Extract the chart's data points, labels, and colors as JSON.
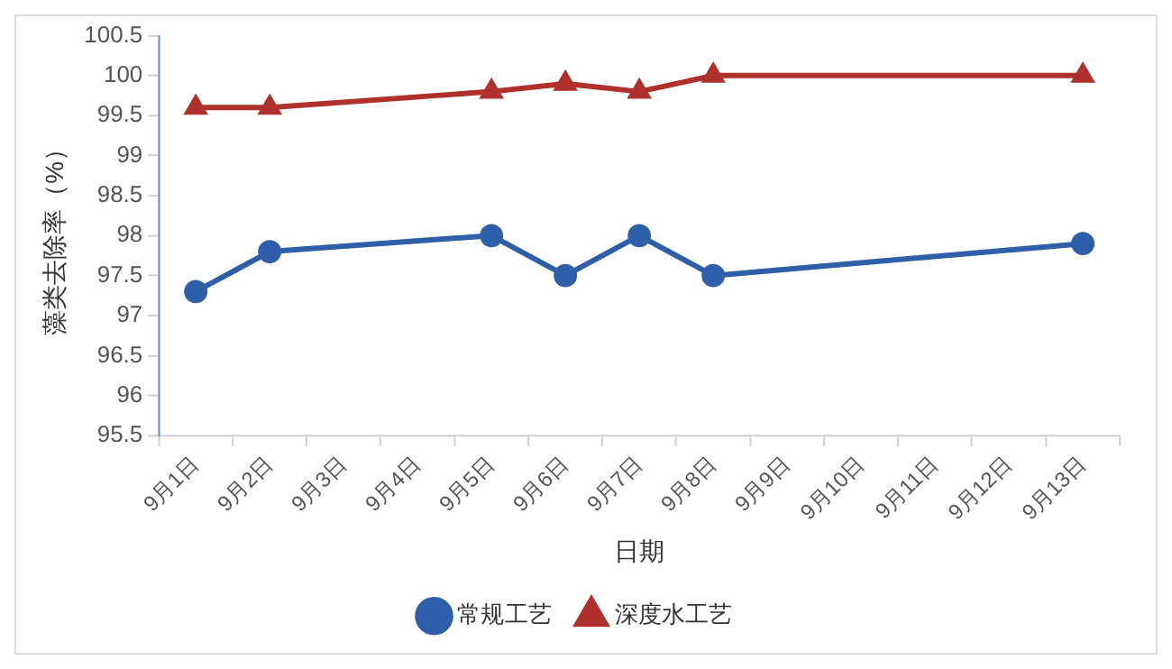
{
  "chart_data": {
    "type": "line",
    "xlabel": "日期",
    "ylabel": "藻类去除率（%）",
    "categories": [
      "9月1日",
      "9月2日",
      "9月3日",
      "9月4日",
      "9月5日",
      "9月6日",
      "9月7日",
      "9月8日",
      "9月9日",
      "9月10日",
      "9月11日",
      "9月12日",
      "9月13日"
    ],
    "series": [
      {
        "name": "常规工艺",
        "color": "#2e5fa8",
        "marker": "circle",
        "values": [
          97.3,
          97.8,
          null,
          null,
          98.0,
          97.5,
          98.0,
          97.5,
          null,
          null,
          null,
          null,
          97.9
        ]
      },
      {
        "name": "深度水工艺",
        "color": "#b0302c",
        "marker": "triangle",
        "values": [
          99.6,
          99.6,
          null,
          null,
          99.8,
          99.9,
          99.8,
          100,
          null,
          null,
          null,
          null,
          100
        ]
      }
    ],
    "ylim": [
      95.5,
      100.5
    ],
    "yticks": [
      95.5,
      96,
      96.5,
      97,
      97.5,
      98,
      98.5,
      99,
      99.5,
      100,
      100.5
    ],
    "grid": false,
    "legend": "bottom"
  }
}
